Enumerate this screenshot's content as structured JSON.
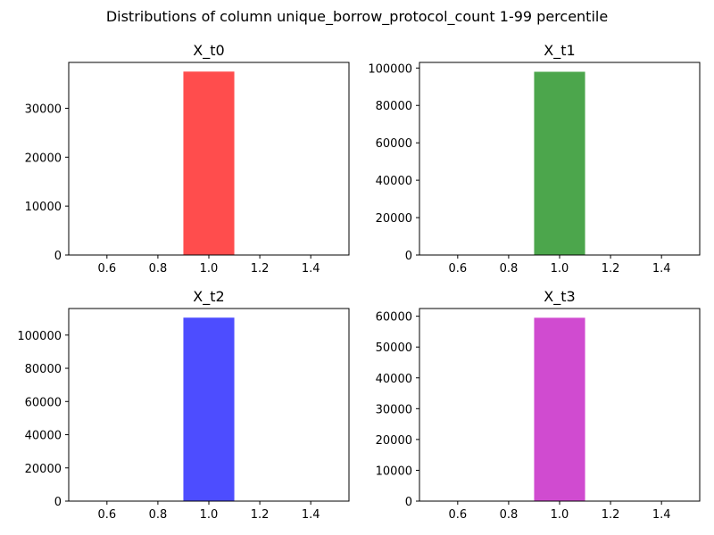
{
  "figure": {
    "title": "Distributions of column unique_borrow_protocol_count 1-99 percentile"
  },
  "chart_data": [
    {
      "type": "bar",
      "title": "X_t0",
      "xlabel": "",
      "ylabel": "",
      "xlim": [
        0.45,
        1.55
      ],
      "ylim": [
        0,
        39375
      ],
      "xticks": [
        0.6,
        0.8,
        1.0,
        1.2,
        1.4
      ],
      "xtick_labels": [
        "0.6",
        "0.8",
        "1.0",
        "1.2",
        "1.4"
      ],
      "yticks": [
        0,
        10000,
        20000,
        30000
      ],
      "ytick_labels": [
        "0",
        "10000",
        "20000",
        "30000"
      ],
      "bars": [
        {
          "x0": 0.9,
          "x1": 1.1,
          "value": 37500
        }
      ],
      "color": "#ff4d4d",
      "grid": false
    },
    {
      "type": "bar",
      "title": "X_t1",
      "xlabel": "",
      "ylabel": "",
      "xlim": [
        0.45,
        1.55
      ],
      "ylim": [
        0,
        103000
      ],
      "xticks": [
        0.6,
        0.8,
        1.0,
        1.2,
        1.4
      ],
      "xtick_labels": [
        "0.6",
        "0.8",
        "1.0",
        "1.2",
        "1.4"
      ],
      "yticks": [
        0,
        20000,
        40000,
        60000,
        80000,
        100000
      ],
      "ytick_labels": [
        "0",
        "20000",
        "40000",
        "60000",
        "80000",
        "100000"
      ],
      "bars": [
        {
          "x0": 0.9,
          "x1": 1.1,
          "value": 98000
        }
      ],
      "color": "#4ca64c",
      "grid": false
    },
    {
      "type": "bar",
      "title": "X_t2",
      "xlabel": "",
      "ylabel": "",
      "xlim": [
        0.45,
        1.55
      ],
      "ylim": [
        0,
        116000
      ],
      "xticks": [
        0.6,
        0.8,
        1.0,
        1.2,
        1.4
      ],
      "xtick_labels": [
        "0.6",
        "0.8",
        "1.0",
        "1.2",
        "1.4"
      ],
      "yticks": [
        0,
        20000,
        40000,
        60000,
        80000,
        100000
      ],
      "ytick_labels": [
        "0",
        "20000",
        "40000",
        "60000",
        "80000",
        "100000"
      ],
      "bars": [
        {
          "x0": 0.9,
          "x1": 1.1,
          "value": 110500
        }
      ],
      "color": "#4d4dff",
      "grid": false
    },
    {
      "type": "bar",
      "title": "X_t3",
      "xlabel": "",
      "ylabel": "",
      "xlim": [
        0.45,
        1.55
      ],
      "ylim": [
        0,
        62500
      ],
      "xticks": [
        0.6,
        0.8,
        1.0,
        1.2,
        1.4
      ],
      "xtick_labels": [
        "0.6",
        "0.8",
        "1.0",
        "1.2",
        "1.4"
      ],
      "yticks": [
        0,
        10000,
        20000,
        30000,
        40000,
        50000,
        60000
      ],
      "ytick_labels": [
        "0",
        "10000",
        "20000",
        "30000",
        "40000",
        "50000",
        "60000"
      ],
      "bars": [
        {
          "x0": 0.9,
          "x1": 1.1,
          "value": 59500
        }
      ],
      "color": "#d04bd0",
      "grid": false
    }
  ]
}
